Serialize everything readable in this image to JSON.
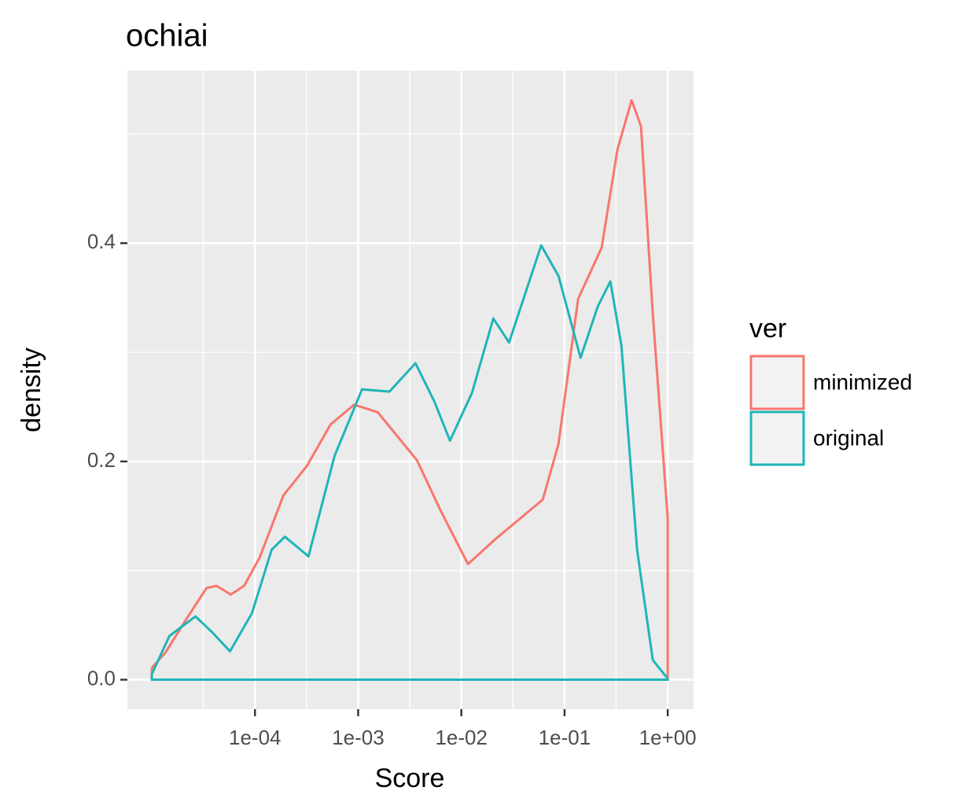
{
  "chart_data": {
    "type": "line",
    "title": "ochiai",
    "x_label": "Score",
    "y_label": "density",
    "log_x": true,
    "grid": true,
    "legend_title": "ver",
    "legend_position": "right",
    "xlim": [
      5.8e-06,
      1.78
    ],
    "ylim": [
      -0.027,
      0.558
    ],
    "xticks": [
      {
        "value": 0.0001,
        "label": "1e-04"
      },
      {
        "value": 0.001,
        "label": "1e-03"
      },
      {
        "value": 0.01,
        "label": "1e-02"
      },
      {
        "value": 0.1,
        "label": "1e-01"
      },
      {
        "value": 1,
        "label": "1e+00"
      }
    ],
    "minor_xticks": [
      3.16e-05,
      0.000316,
      0.00316,
      0.0316,
      0.316
    ],
    "yticks": [
      {
        "value": 0,
        "label": "0.0"
      },
      0.2,
      0.4
    ],
    "minor_yticks": [
      0.1,
      0.3,
      0.5
    ],
    "series": [
      {
        "name": "minimized",
        "color": "#F8766D",
        "x": [
          1e-05,
          1.36e-05,
          2.11e-05,
          3.39e-05,
          4.25e-05,
          5.82e-05,
          7.85e-05,
          0.000111,
          0.000189,
          0.000319,
          0.000541,
          0.000915,
          0.00155,
          0.00372,
          0.00629,
          0.0116,
          0.0215,
          0.0364,
          0.0615,
          0.0874,
          0.1355,
          0.229,
          0.326,
          0.447,
          0.551,
          0.717,
          1
        ],
        "values": [
          0.011,
          0.025,
          0.054,
          0.084,
          0.086,
          0.078,
          0.086,
          0.112,
          0.169,
          0.196,
          0.234,
          0.252,
          0.245,
          0.201,
          0.155,
          0.106,
          0.129,
          0.147,
          0.165,
          0.216,
          0.349,
          0.396,
          0.486,
          0.531,
          0.507,
          0.335,
          0.148
        ]
      },
      {
        "name": "original",
        "color": "#1FB5B8",
        "x": [
          1e-05,
          1.48e-05,
          2.65e-05,
          3.89e-05,
          5.73e-05,
          9.35e-05,
          0.000145,
          0.000195,
          0.00033,
          0.00059,
          0.00109,
          0.00201,
          0.00359,
          0.00547,
          0.00776,
          0.0127,
          0.0204,
          0.029,
          0.0594,
          0.0874,
          0.143,
          0.21,
          0.278,
          0.356,
          0.505,
          0.717,
          1
        ],
        "values": [
          0.005,
          0.04,
          0.058,
          0.043,
          0.026,
          0.061,
          0.119,
          0.131,
          0.113,
          0.205,
          0.266,
          0.264,
          0.29,
          0.255,
          0.219,
          0.263,
          0.331,
          0.309,
          0.398,
          0.37,
          0.295,
          0.342,
          0.365,
          0.306,
          0.119,
          0.018,
          0.001
        ]
      }
    ]
  }
}
